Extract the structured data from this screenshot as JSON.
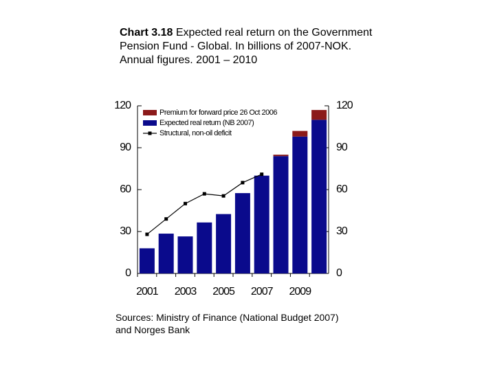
{
  "chart_data": {
    "type": "bar",
    "title_number": "Chart 3.18",
    "title": "Expected real return on the Government Pension Fund - Global. In billions of 2007-NOK. Annual figures. 2001 – 2010",
    "source": "Sources: Ministry of Finance (National Budget 2007) and Norges Bank",
    "categories": [
      "2001",
      null,
      "2003",
      null,
      "2005",
      null,
      "2007",
      null,
      "2009",
      null
    ],
    "series": [
      {
        "name": "Premium for forward price 26 Oct 2006",
        "type": "bar",
        "color": "#8b1a1a",
        "values": [
          0,
          0,
          0,
          0,
          0,
          0,
          0,
          1,
          4,
          7
        ]
      },
      {
        "name": "Expected real return (NB 2007)",
        "type": "bar",
        "color": "#0a0a8c",
        "values": [
          18,
          28.5,
          26.5,
          36.5,
          42.5,
          57.5,
          70,
          84,
          98,
          110
        ]
      },
      {
        "name": "Structural, non-oil deficit",
        "type": "line",
        "color": "#000000",
        "values": [
          28,
          39,
          50,
          57,
          55.5,
          65,
          71,
          null,
          null,
          null
        ]
      }
    ],
    "ylim": [
      0,
      120
    ],
    "yticks": [
      0,
      30,
      60,
      90,
      120
    ],
    "y2lim": [
      0,
      120
    ],
    "y2ticks": [
      0,
      30,
      60,
      90,
      120
    ],
    "legend": "upper left"
  }
}
